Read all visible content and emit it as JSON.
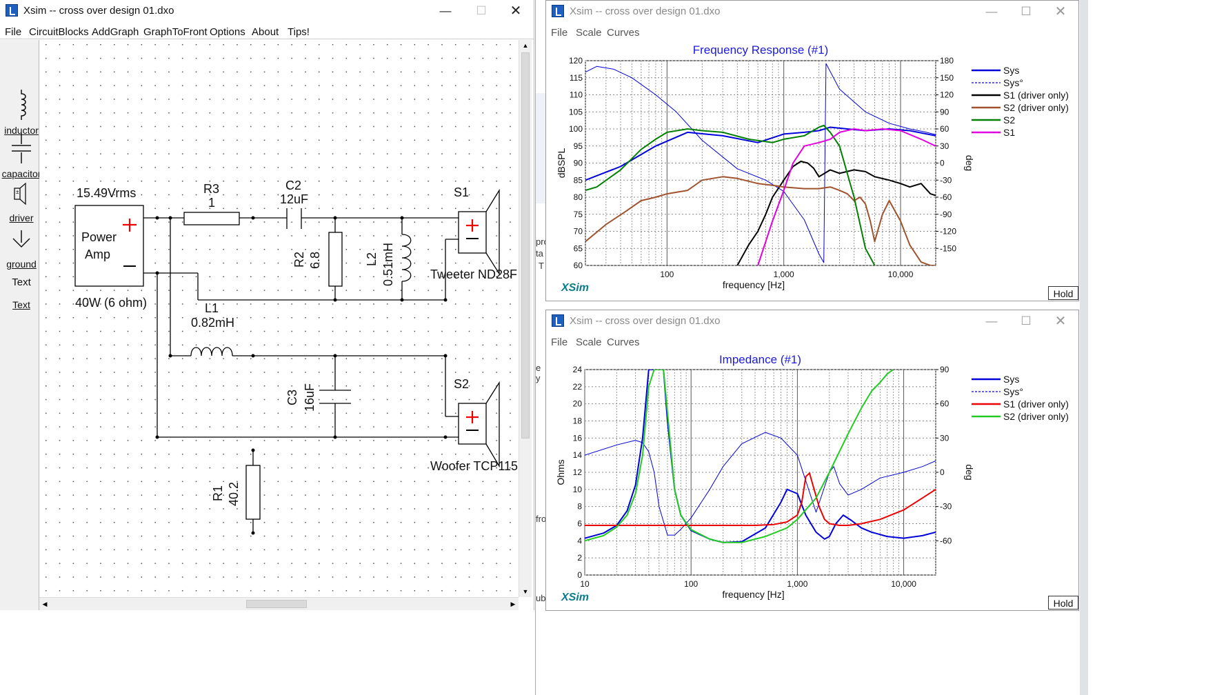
{
  "main_window": {
    "title": "Xsim -- cross over design 01.dxo",
    "menu": [
      "File",
      "CircuitBlocks",
      "AddGraph",
      "GraphToFront",
      "Options",
      "About",
      "Tips!"
    ],
    "palette": [
      "inductor",
      "capacitor",
      "driver",
      "ground",
      "Text",
      "Text"
    ],
    "schematic": {
      "source_voltage": "15.49Vrms",
      "amp_line1": "Power",
      "amp_line2": "Amp",
      "amp_rating": "40W (6 ohm)",
      "r3_name": "R3",
      "r3_value": "1",
      "c2_name": "C2",
      "c2_value": "12uF",
      "r2_name": "R2",
      "r2_value": "6.8",
      "l2_name": "L2",
      "l2_value": "0.51mH",
      "l1_name": "L1",
      "l1_value": "0.82mH",
      "c3_name": "C3",
      "c3_value": "16uF",
      "r1_name": "R1",
      "r1_value": "40.2",
      "s1_name": "S1",
      "s1_driver": "Tweeter ND28F",
      "s2_name": "S2",
      "s2_driver": "Woofer TCP115"
    }
  },
  "background_fragments": [
    "pro",
    "ta",
    "T",
    "e y",
    "fro",
    "ubr"
  ],
  "fr_window": {
    "title": "Xsim -- cross over design 01.dxo",
    "menu": [
      "File",
      "Scale",
      "Curves"
    ],
    "watermark": "XSim",
    "hold_label": "Hold",
    "chart_data": {
      "type": "line",
      "title": "Frequency Response (#1)",
      "xlabel": "frequency [Hz]",
      "ylabel": "dBSPL",
      "y2label": "deg",
      "x_scale": "log",
      "xlim": [
        20,
        20000
      ],
      "ylim": [
        60,
        120
      ],
      "y2lim": [
        -180,
        180
      ],
      "x_ticks": [
        "100",
        "1,000",
        "10,000"
      ],
      "y_ticks": [
        "120",
        "115",
        "110",
        "105",
        "100",
        "95",
        "90",
        "85",
        "80",
        "75",
        "70",
        "65",
        "60"
      ],
      "y2_ticks": [
        "180",
        "150",
        "120",
        "90",
        "60",
        "30",
        "0",
        "-30",
        "-60",
        "-90",
        "-120",
        "-150"
      ],
      "legend_position": "right",
      "legend": [
        {
          "name": "Sys",
          "color": "#0000dd",
          "dash": false
        },
        {
          "name": "Sys°",
          "color": "#0000dd",
          "dash": true
        },
        {
          "name": "S1 (driver only)",
          "color": "#000000",
          "dash": false
        },
        {
          "name": "S2 (driver only)",
          "color": "#a0522d",
          "dash": false
        },
        {
          "name": "S2",
          "color": "#008000",
          "dash": false
        },
        {
          "name": "S1",
          "color": "#e000e0",
          "dash": false
        }
      ],
      "series": [
        {
          "name": "Sys",
          "color": "#0000dd",
          "axis": "left",
          "x": [
            20,
            40,
            80,
            150,
            300,
            600,
            1000,
            1500,
            2000,
            2500,
            3500,
            5000,
            8000,
            12000,
            20000
          ],
          "y": [
            85,
            89,
            95,
            99,
            98,
            96,
            98.5,
            99,
            99.5,
            100.5,
            100,
            99.5,
            100,
            99.5,
            98
          ]
        },
        {
          "name": "Sys°",
          "color": "#0000dd",
          "axis": "right",
          "thin": true,
          "x": [
            20,
            25,
            35,
            50,
            80,
            120,
            200,
            400,
            700,
            1000,
            1500,
            2000,
            2200,
            2300,
            3000,
            5000,
            8000,
            12000,
            16000,
            20000
          ],
          "y": [
            160,
            170,
            165,
            150,
            120,
            90,
            40,
            -10,
            -30,
            -50,
            -100,
            -160,
            -175,
            175,
            130,
            90,
            70,
            60,
            55,
            50
          ]
        },
        {
          "name": "S1 (driver only)",
          "color": "#000000",
          "axis": "left",
          "x": [
            400,
            500,
            600,
            700,
            800,
            1000,
            1200,
            1400,
            1600,
            1800,
            2000,
            2500,
            3000,
            4000,
            5000,
            6000,
            8000,
            10000,
            12000,
            15000,
            18000,
            20000
          ],
          "y": [
            60,
            66,
            70,
            75,
            80,
            85,
            89,
            90.5,
            90,
            88.5,
            86,
            88,
            87,
            88,
            87.5,
            86,
            85,
            84,
            83,
            84,
            81,
            80.5
          ]
        },
        {
          "name": "S2 (driver only)",
          "color": "#a0522d",
          "axis": "left",
          "x": [
            20,
            30,
            45,
            60,
            80,
            100,
            150,
            200,
            300,
            400,
            600,
            800,
            1000,
            1500,
            2000,
            2500,
            3000,
            3500,
            4000,
            4500,
            5000,
            5500,
            6000,
            7000,
            8000,
            10000,
            12000,
            15000,
            18000,
            20000
          ],
          "y": [
            67,
            72,
            76,
            79,
            80,
            81,
            82,
            85,
            86,
            85.5,
            84,
            83.5,
            83,
            82.5,
            82.5,
            83,
            82,
            81,
            79,
            80,
            78,
            73,
            67,
            75,
            79,
            73,
            66,
            61,
            60,
            60
          ]
        },
        {
          "name": "S2",
          "color": "#008000",
          "axis": "left",
          "x": [
            20,
            25,
            40,
            60,
            80,
            100,
            150,
            200,
            300,
            500,
            800,
            1000,
            1500,
            2000,
            2200,
            2500,
            3000,
            4000,
            5000,
            6000
          ],
          "y": [
            82,
            83,
            88,
            94,
            97,
            99,
            100,
            99.5,
            99,
            97,
            96,
            97,
            98,
            100.5,
            101,
            99,
            95,
            80,
            65,
            60
          ]
        },
        {
          "name": "S1",
          "color": "#e000e0",
          "axis": "left",
          "x": [
            600,
            700,
            800,
            1000,
            1200,
            1500,
            2000,
            2500,
            3000,
            4000,
            5000,
            7000,
            10000,
            15000,
            20000
          ],
          "y": [
            60,
            67,
            73,
            82,
            90,
            95,
            96,
            97,
            99,
            100,
            99.5,
            100,
            99.5,
            97,
            95
          ]
        }
      ]
    }
  },
  "imp_window": {
    "title": "Xsim -- cross over design 01.dxo",
    "menu": [
      "File",
      "Scale",
      "Curves"
    ],
    "watermark": "XSim",
    "hold_label": "Hold",
    "chart_data": {
      "type": "line",
      "title": "Impedance (#1)",
      "xlabel": "frequency [Hz]",
      "ylabel": "Ohms",
      "y2label": "deg",
      "x_scale": "log",
      "xlim": [
        10,
        20000
      ],
      "ylim": [
        0,
        24
      ],
      "y2lim": [
        -90,
        90
      ],
      "x_ticks": [
        "10",
        "100",
        "1,000",
        "10,000"
      ],
      "y_ticks": [
        "24",
        "22",
        "20",
        "18",
        "16",
        "14",
        "12",
        "10",
        "8",
        "6",
        "4",
        "2",
        "0"
      ],
      "y2_ticks": [
        "90",
        "60",
        "30",
        "0",
        "-30",
        "-60"
      ],
      "legend_position": "right",
      "legend": [
        {
          "name": "Sys",
          "color": "#0000dd",
          "dash": false
        },
        {
          "name": "Sys°",
          "color": "#0000dd",
          "dash": true
        },
        {
          "name": "S1 (driver only)",
          "color": "#ee0000",
          "dash": false
        },
        {
          "name": "S2 (driver only)",
          "color": "#22cc22",
          "dash": false
        }
      ],
      "series": [
        {
          "name": "Sys",
          "color": "#0000dd",
          "axis": "left",
          "x": [
            10,
            15,
            20,
            25,
            30,
            35,
            40,
            45,
            50,
            55,
            60,
            70,
            80,
            100,
            150,
            200,
            300,
            500,
            700,
            800,
            1000,
            1200,
            1500,
            1800,
            2000,
            2300,
            2700,
            3200,
            4000,
            5000,
            7000,
            10000,
            15000,
            20000
          ],
          "y": [
            4.3,
            4.9,
            5.8,
            7.5,
            10.5,
            16,
            24,
            24,
            24,
            24,
            18,
            10,
            7,
            5.2,
            4.2,
            3.8,
            3.9,
            5.5,
            8.5,
            10,
            9.5,
            7,
            5,
            4.2,
            4.5,
            6,
            7,
            6.4,
            5.5,
            5,
            4.5,
            4.3,
            4.6,
            5
          ]
        },
        {
          "name": "Sys°",
          "color": "#0000dd",
          "axis": "right",
          "thin": true,
          "x": [
            10,
            20,
            30,
            35,
            40,
            45,
            50,
            60,
            70,
            80,
            100,
            150,
            200,
            300,
            500,
            700,
            1000,
            1500,
            2000,
            2200,
            2500,
            3000,
            4000,
            6000,
            10000,
            15000,
            20000
          ],
          "y": [
            15,
            24,
            28,
            26,
            18,
            0,
            -30,
            -55,
            -55,
            -50,
            -40,
            -15,
            5,
            25,
            35,
            30,
            15,
            -35,
            0,
            5,
            -10,
            -20,
            -15,
            -5,
            0,
            5,
            10
          ]
        },
        {
          "name": "S1 (driver only)",
          "color": "#ee0000",
          "axis": "left",
          "x": [
            10,
            50,
            100,
            200,
            400,
            600,
            800,
            1000,
            1100,
            1200,
            1300,
            1400,
            1600,
            1800,
            2000,
            2500,
            3000,
            4000,
            6000,
            10000,
            15000,
            20000
          ],
          "y": [
            5.8,
            5.8,
            5.8,
            5.8,
            5.8,
            5.9,
            6.2,
            7,
            8.5,
            11.5,
            11.9,
            10.5,
            8,
            6.5,
            6,
            5.8,
            5.8,
            6,
            6.5,
            7.6,
            9,
            10
          ]
        },
        {
          "name": "S2 (driver only)",
          "color": "#22cc22",
          "axis": "left",
          "x": [
            10,
            15,
            20,
            25,
            30,
            35,
            40,
            45,
            50,
            55,
            60,
            70,
            80,
            100,
            150,
            200,
            300,
            500,
            800,
            1000,
            1500,
            2000,
            3000,
            4000,
            5000,
            6000,
            7000,
            8000
          ],
          "y": [
            4,
            4.6,
            5.6,
            7,
            9.5,
            14,
            22,
            24,
            24,
            24,
            19,
            10,
            7,
            5.3,
            4.2,
            3.8,
            3.8,
            4.5,
            5.5,
            6.5,
            9,
            12,
            16.5,
            19.5,
            21.5,
            22.5,
            23.5,
            24
          ]
        }
      ]
    }
  }
}
